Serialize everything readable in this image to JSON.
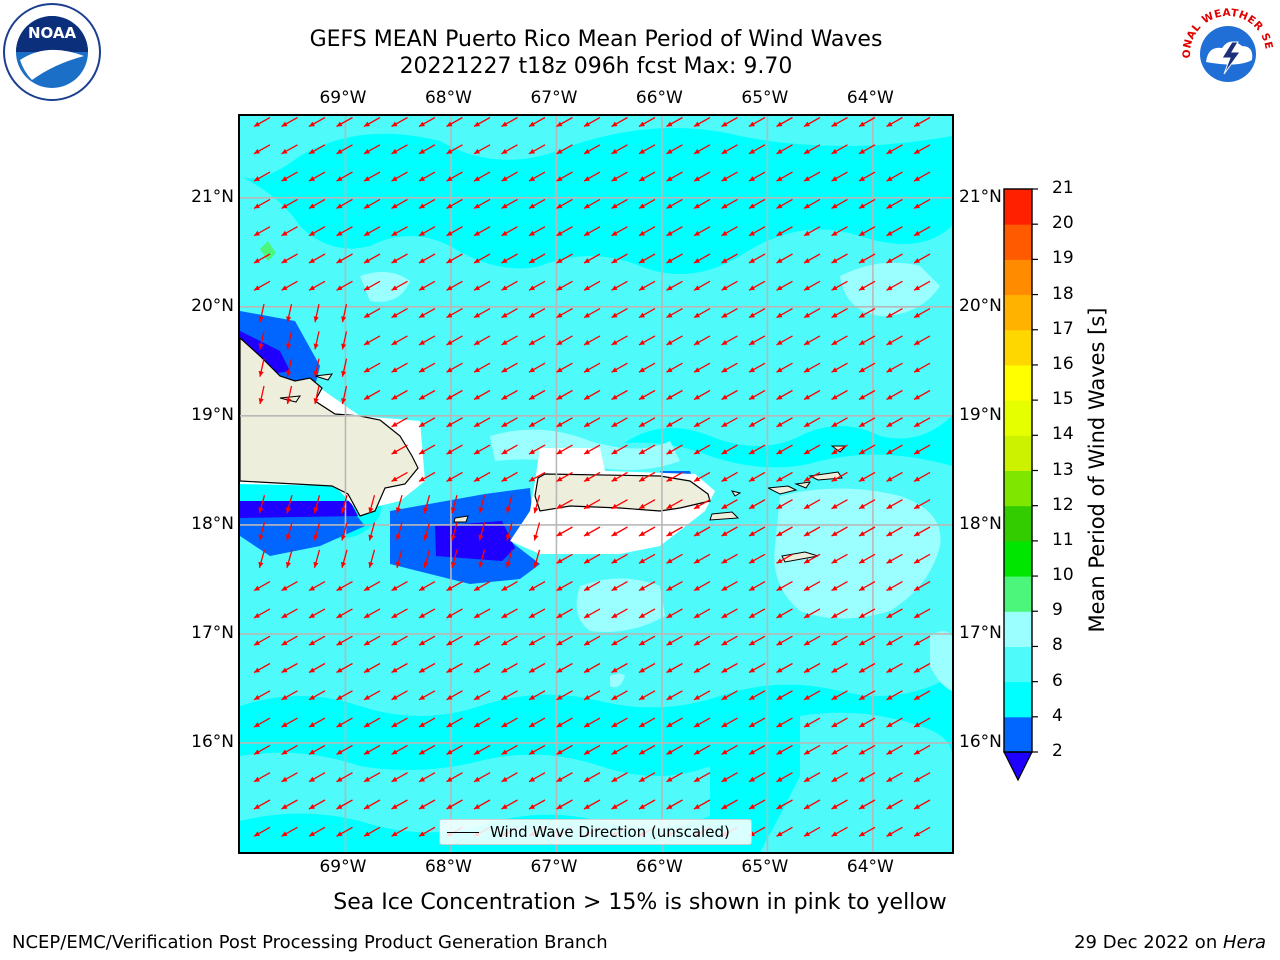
{
  "header": {
    "title_line1": "GEFS MEAN Puerto Rico Mean Period of Wind Waves",
    "title_line2": "20221227 t18z 096h fcst   Max: 9.70"
  },
  "logos": {
    "noaa_text": "NOAA",
    "nws_ring_text": "NATIONAL WEATHER SERVICE"
  },
  "axes": {
    "lon_ticks": [
      "69°W",
      "68°W",
      "67°W",
      "66°W",
      "65°W",
      "64°W"
    ],
    "lat_ticks": [
      "21°N",
      "20°N",
      "19°N",
      "18°N",
      "17°N",
      "16°N"
    ],
    "lon_values": [
      -69,
      -68,
      -67,
      -66,
      -65,
      -64
    ],
    "lat_values": [
      21,
      20,
      19,
      18,
      17,
      16
    ],
    "lon_range": [
      -70,
      -63.25
    ],
    "lat_range": [
      15,
      21.75
    ]
  },
  "colorbar": {
    "label": "Mean Period of Wind Waves [s]",
    "ticks": [
      "21",
      "20",
      "19",
      "18",
      "17",
      "16",
      "15",
      "14",
      "13",
      "12",
      "11",
      "10",
      "9",
      "8",
      "6",
      "4",
      "2"
    ],
    "levels": [
      2,
      4,
      6,
      8,
      9,
      10,
      11,
      12,
      13,
      14,
      15,
      16,
      17,
      18,
      19,
      20,
      21
    ],
    "colors": [
      "#0066ff",
      "#00ffff",
      "#4ffafa",
      "#9cffff",
      "#4cf67a",
      "#00e600",
      "#33cc00",
      "#7fe600",
      "#ccf200",
      "#e6ff00",
      "#ffff00",
      "#ffd700",
      "#ffb300",
      "#ff8c00",
      "#ff5a00",
      "#ff2000"
    ],
    "under_color": "#1f00ff"
  },
  "legend": {
    "label": "Wind Wave Direction (unscaled)"
  },
  "colors": {
    "arrow": "#ff0000",
    "land": "#eeeedc",
    "grid": "#b8b8b8"
  },
  "note": "Sea Ice Concentration > 15% is shown in pink to yellow",
  "footer": {
    "left": "NCEP/EMC/Verification Post Processing Product Generation Branch",
    "date": "29 Dec 2022 on ",
    "machine": "Hera"
  }
}
